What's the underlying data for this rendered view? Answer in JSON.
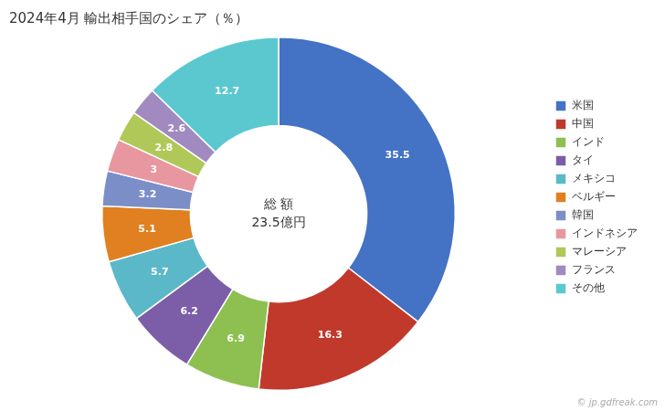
{
  "chart_data": {
    "type": "doughnut",
    "title": "2024年4月 輸出相手国のシェア（％）",
    "categories": [
      "米国",
      "中国",
      "インド",
      "タイ",
      "メキシコ",
      "ベルギー",
      "韓国",
      "インドネシア",
      "マレーシア",
      "フランス",
      "その他"
    ],
    "values": [
      35.5,
      16.3,
      6.9,
      6.2,
      5.7,
      5.1,
      3.2,
      3.0,
      2.8,
      2.6,
      12.7
    ],
    "colors": [
      "#4472C4",
      "#C0392B",
      "#8DC050",
      "#7B5EA7",
      "#5BB8C8",
      "#E08020",
      "#7B8EC8",
      "#E896A0",
      "#B0C858",
      "#A08AC0",
      "#5BC8D0"
    ],
    "data_labels": true,
    "legend": "right",
    "annotations": [
      "総 額",
      "23.5億円",
      "© jp.gdfreak.com"
    ]
  }
}
